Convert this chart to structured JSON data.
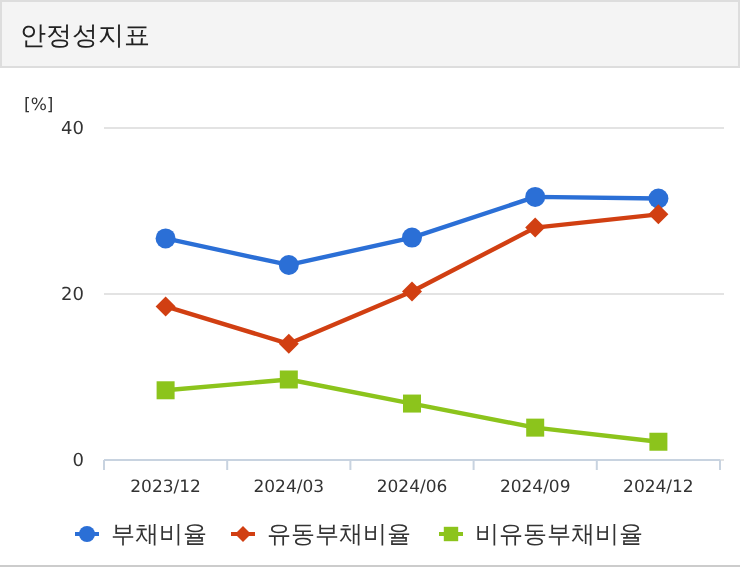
{
  "chart_data": {
    "type": "line",
    "title": "안정성지표",
    "ylabel": "[%]",
    "categories": [
      "2023/12",
      "2024/03",
      "2024/06",
      "2024/09",
      "2024/12"
    ],
    "series": [
      {
        "name": "부채비율",
        "color": "#2b6fd6",
        "marker": "circle",
        "values": [
          26.7,
          23.5,
          26.8,
          31.7,
          31.5
        ]
      },
      {
        "name": "유동부채비율",
        "color": "#d13f12",
        "marker": "diamond",
        "values": [
          18.5,
          14.0,
          20.3,
          28.0,
          29.6
        ]
      },
      {
        "name": "비유동부채비율",
        "color": "#8cc41c",
        "marker": "square",
        "values": [
          8.4,
          9.7,
          6.8,
          3.9,
          2.2
        ]
      }
    ],
    "ylim": [
      0,
      40
    ],
    "yticks": [
      0,
      20,
      40
    ],
    "grid": "y",
    "legend": "bottom"
  }
}
